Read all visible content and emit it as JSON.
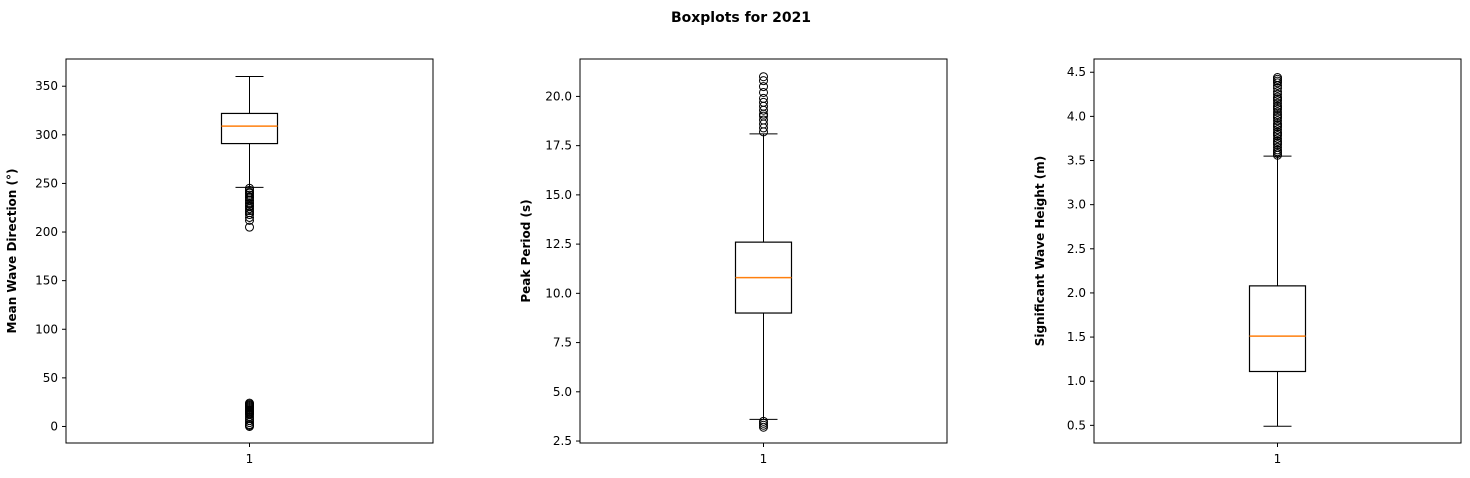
{
  "figure": {
    "title": "Boxplots for 2021"
  },
  "colors": {
    "median": "#ff7f0e",
    "box": "#000000",
    "flier": "#000000",
    "background": "#ffffff"
  },
  "chart_data": [
    {
      "type": "boxplot",
      "ylabel": "Mean Wave Direction (°)",
      "categories": [
        "1"
      ],
      "ylim": [
        -17,
        378
      ],
      "yticks": [
        0,
        50,
        100,
        150,
        200,
        250,
        300,
        350
      ],
      "yticklabels": [
        "0",
        "50",
        "100",
        "150",
        "200",
        "250",
        "300",
        "350"
      ],
      "box": {
        "whisker_low": 246,
        "q1": 291,
        "median": 309,
        "q3": 322,
        "whisker_high": 360
      },
      "fliers": [
        245,
        243,
        241,
        240,
        238,
        236,
        235,
        233,
        232,
        230,
        229,
        227,
        226,
        224,
        222,
        220,
        218,
        215,
        212,
        205,
        24,
        23,
        22,
        21,
        20,
        19,
        18,
        17,
        16,
        15,
        14,
        13,
        12,
        10,
        8,
        6,
        4,
        2,
        1,
        0
      ]
    },
    {
      "type": "boxplot",
      "ylabel": "Peak Period (s)",
      "categories": [
        "1"
      ],
      "ylim": [
        2.4,
        21.9
      ],
      "yticks": [
        2.5,
        5.0,
        7.5,
        10.0,
        12.5,
        15.0,
        17.5,
        20.0
      ],
      "yticklabels": [
        "2.5",
        "5.0",
        "7.5",
        "10.0",
        "12.5",
        "15.0",
        "17.5",
        "20.0"
      ],
      "box": {
        "whisker_low": 3.6,
        "q1": 9.0,
        "median": 10.8,
        "q3": 12.6,
        "whisker_high": 18.1
      },
      "fliers": [
        21.0,
        20.8,
        20.5,
        20.2,
        19.9,
        19.7,
        19.5,
        19.3,
        19.1,
        19.0,
        18.8,
        18.6,
        18.4,
        18.2,
        3.5,
        3.4,
        3.3,
        3.2
      ]
    },
    {
      "type": "boxplot",
      "ylabel": "Significant Wave Height (m)",
      "categories": [
        "1"
      ],
      "ylim": [
        0.3,
        4.65
      ],
      "yticks": [
        0.5,
        1.0,
        1.5,
        2.0,
        2.5,
        3.0,
        3.5,
        4.0,
        4.5
      ],
      "yticklabels": [
        "0.5",
        "1.0",
        "1.5",
        "2.0",
        "2.5",
        "3.0",
        "3.5",
        "4.0",
        "4.5"
      ],
      "box": {
        "whisker_low": 0.49,
        "q1": 1.11,
        "median": 1.51,
        "q3": 2.08,
        "whisker_high": 3.55
      },
      "fliers": [
        4.44,
        4.42,
        4.4,
        4.38,
        4.35,
        4.32,
        4.28,
        4.25,
        4.22,
        4.2,
        4.18,
        4.15,
        4.12,
        4.1,
        4.08,
        4.05,
        4.02,
        4.0,
        3.98,
        3.95,
        3.92,
        3.9,
        3.88,
        3.85,
        3.82,
        3.8,
        3.78,
        3.75,
        3.72,
        3.7,
        3.68,
        3.65,
        3.62,
        3.6,
        3.58,
        3.56
      ]
    }
  ]
}
